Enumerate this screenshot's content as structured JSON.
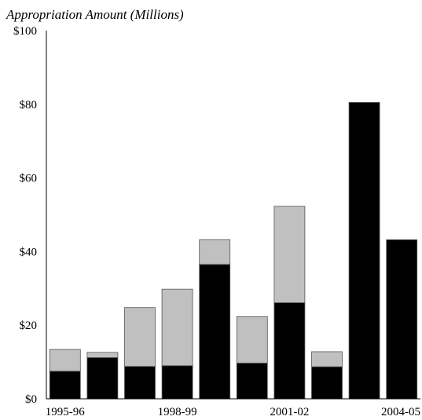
{
  "chart_data": {
    "type": "bar",
    "stacked": true,
    "ylabel": "Appropriation Amount (Millions)",
    "ylim": [
      0,
      100
    ],
    "yticks": [
      "$0",
      "$20",
      "$40",
      "$60",
      "$80",
      "$100"
    ],
    "ytick_values": [
      0,
      20,
      40,
      60,
      80,
      100
    ],
    "x_tick_labels": [
      "1995-96",
      "",
      "",
      "1998-99",
      "",
      "",
      "2001-02",
      "",
      "",
      "2004-05"
    ],
    "bar_count": 10,
    "series": [
      {
        "color": "#000000",
        "values": [
          7.5,
          11.2,
          8.8,
          9.0,
          36.5,
          9.7,
          26.1,
          8.7,
          80.5,
          43.2
        ]
      },
      {
        "color": "#c0c0c0",
        "values": [
          5.9,
          1.4,
          16.0,
          20.8,
          6.7,
          12.6,
          26.2,
          4.1,
          0,
          0
        ]
      }
    ],
    "grid": false,
    "legend": "none"
  }
}
